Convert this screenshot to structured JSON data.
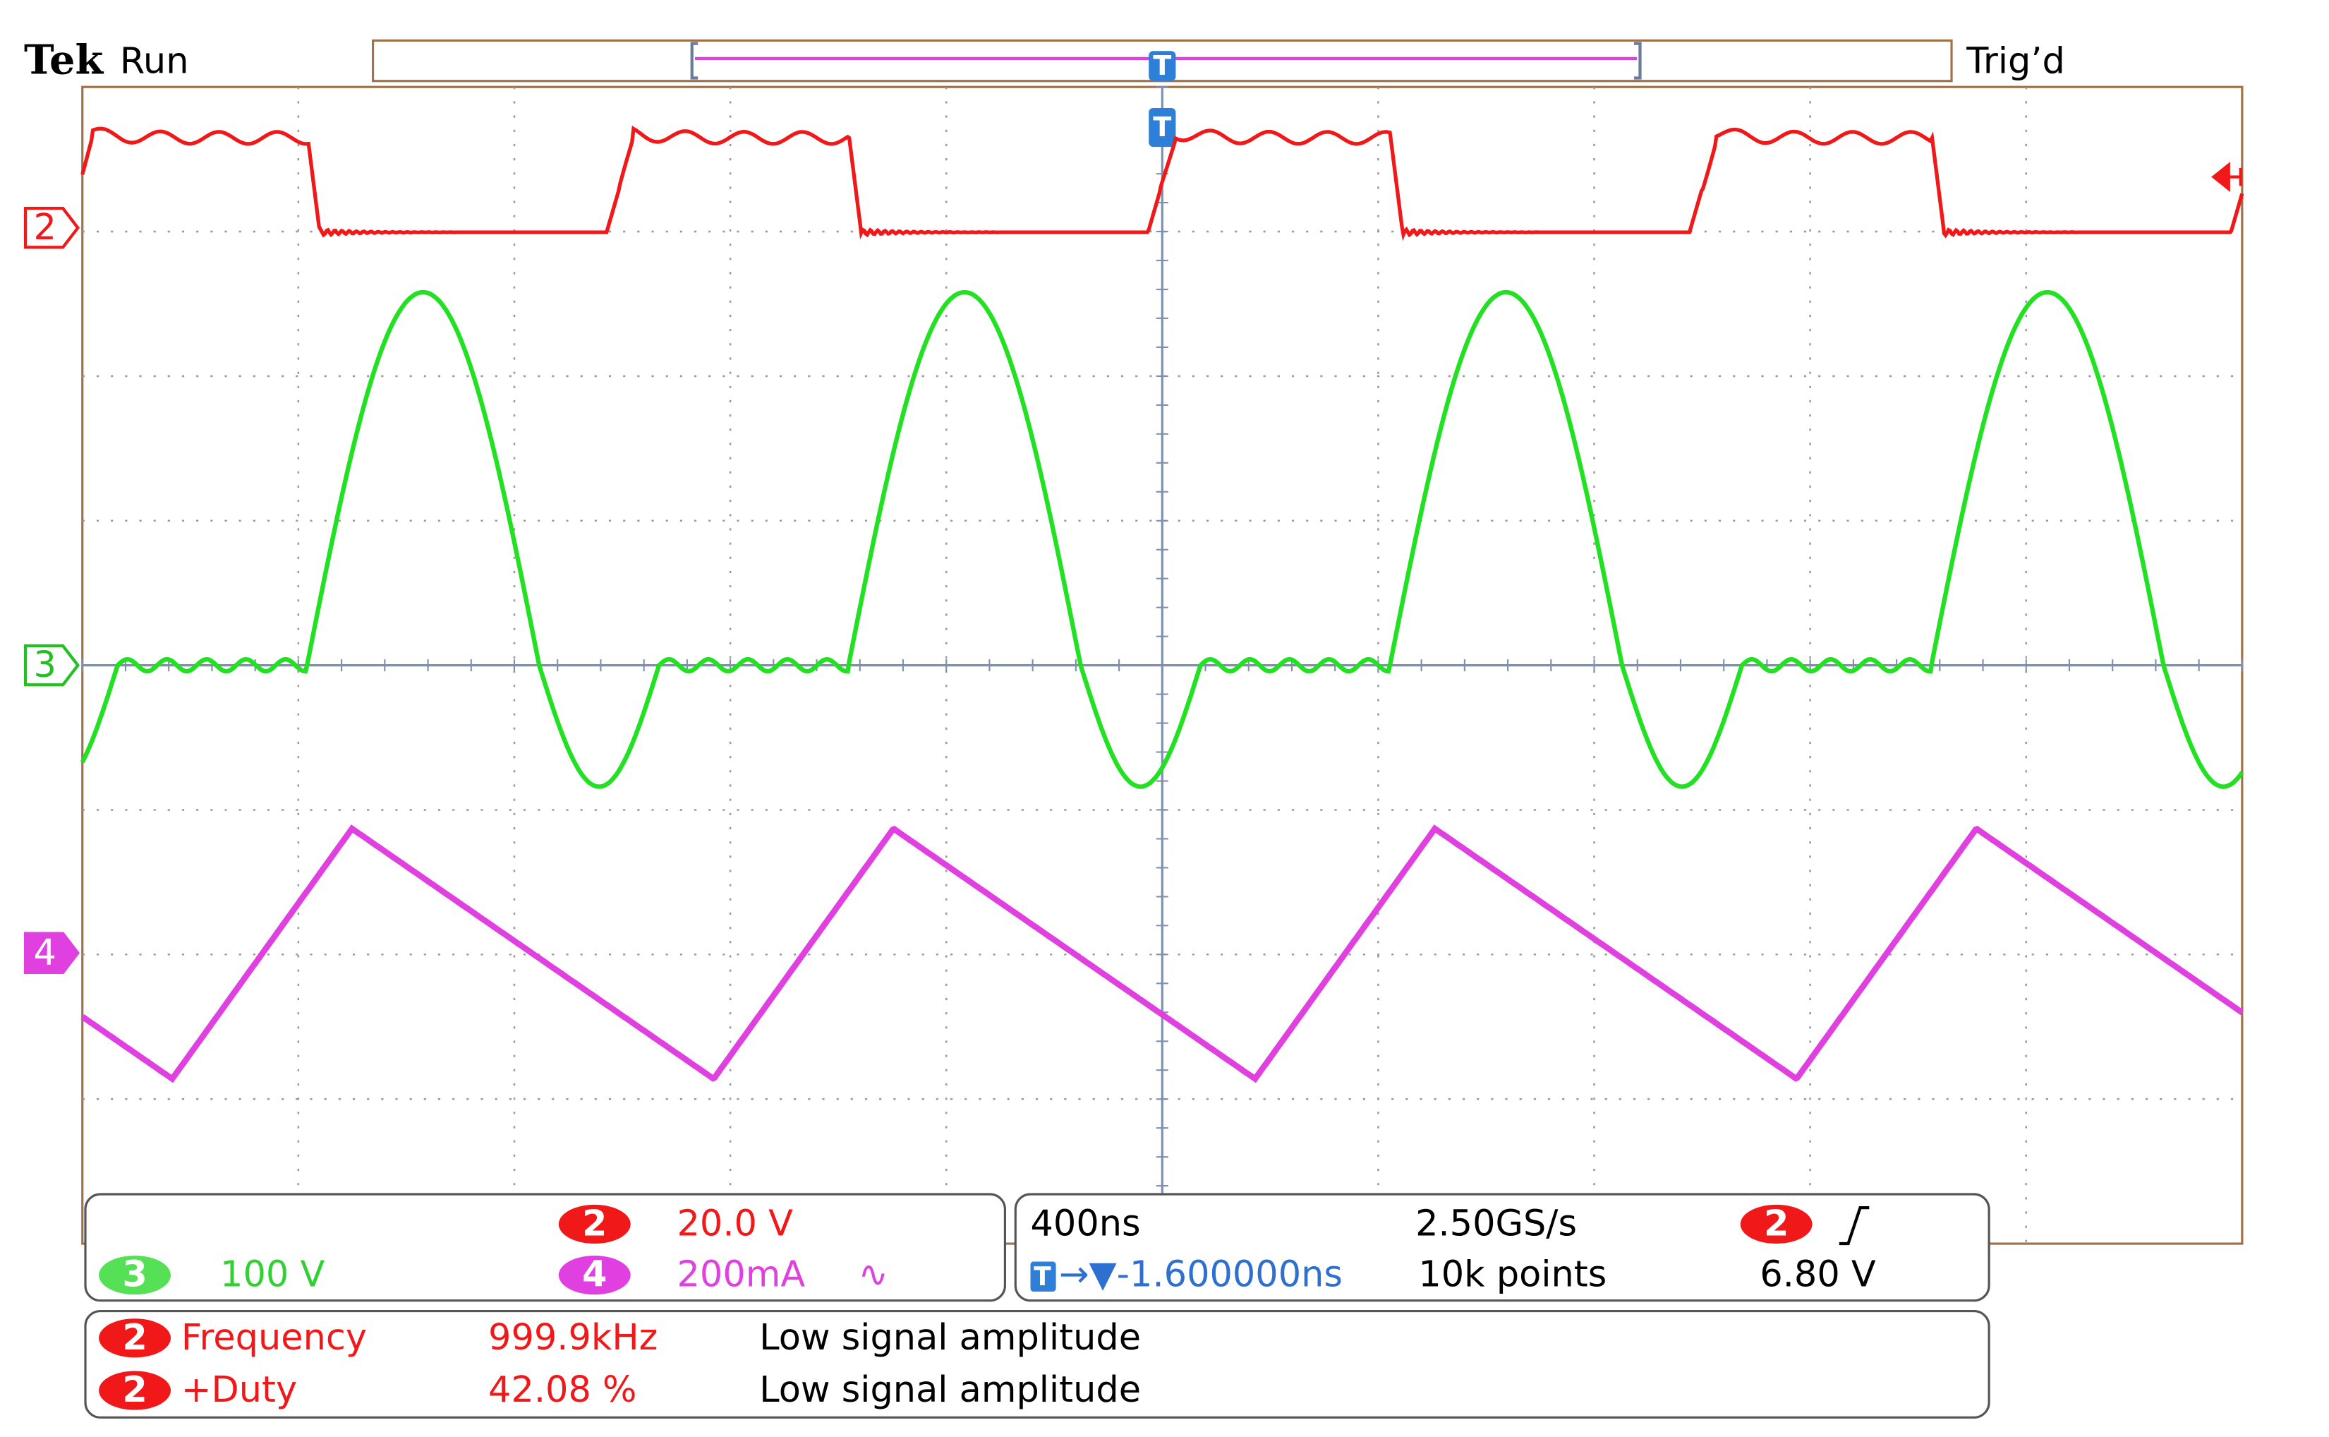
{
  "header": {
    "brand": "Tek",
    "state": "Run",
    "trigger_status": "Trig’d",
    "trigger_marker": "T"
  },
  "channel_markers": [
    "2",
    "3",
    "4"
  ],
  "vertical": {
    "ch2": {
      "channel": "2",
      "scale": "20.0 V"
    },
    "ch3": {
      "channel": "3",
      "scale": "100 V"
    },
    "ch4": {
      "channel": "4",
      "scale": "200mA",
      "coupling": "∿"
    }
  },
  "horizontal": {
    "scale": "400ns",
    "sample_rate": "2.50GS/s",
    "position_marker": "T",
    "position": "→▼-1.600000ns",
    "record_length": "10k points"
  },
  "trigger": {
    "source": "2",
    "level": "6.80 V"
  },
  "measurements": [
    {
      "source": "2",
      "name": "Frequency",
      "value": "999.9kHz",
      "status": "Low signal amplitude"
    },
    {
      "source": "2",
      "name": "+Duty",
      "value": "42.08 %",
      "status": "Low signal amplitude"
    }
  ]
}
